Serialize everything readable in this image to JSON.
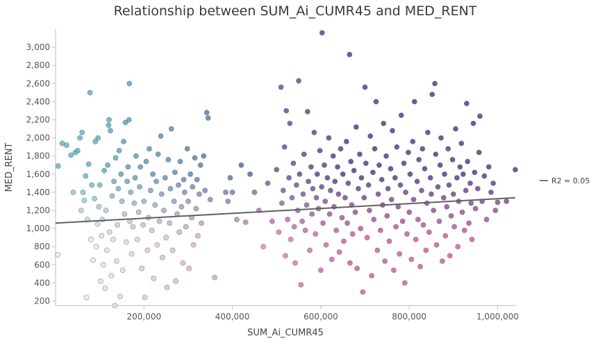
{
  "chart_data": {
    "type": "scatter",
    "title": "Relationship between SUM_Ai_CUMR45 and MED_RENT",
    "xlabel": "SUM_Ai_CUMR45",
    "ylabel": "MED_RENT",
    "xlim": [
      0,
      1040000
    ],
    "ylim": [
      150,
      3200
    ],
    "x_ticks": [
      200000,
      400000,
      600000,
      800000,
      1000000
    ],
    "x_tick_labels": [
      "200,000",
      "400,000",
      "600,000",
      "800,000",
      "1,000,000"
    ],
    "y_ticks": [
      200,
      400,
      600,
      800,
      1000,
      1200,
      1400,
      1600,
      1800,
      2000,
      2200,
      2400,
      2600,
      2800,
      3000
    ],
    "y_tick_labels": [
      "200",
      "400",
      "600",
      "800",
      "1,000",
      "1,200",
      "1,400",
      "1,600",
      "1,800",
      "2,000",
      "2,200",
      "2,400",
      "2,600",
      "2,800",
      "3,000"
    ],
    "grid": false,
    "legend_position": "right",
    "trendline": {
      "label": "R2 = 0.05",
      "x": [
        0,
        1040000
      ],
      "y": [
        1060,
        1340
      ],
      "color": "#606060"
    },
    "bivariate_colors": {
      "low_x_low_y": "#e8e8ee",
      "low_x_high_y": "#55b1c4",
      "high_x_low_y": "#cf4f99",
      "high_x_high_y": "#3c2f82"
    },
    "points": [
      [
        5000,
        710
      ],
      [
        6000,
        1690
      ],
      [
        15000,
        1940
      ],
      [
        25000,
        1920
      ],
      [
        35000,
        1810
      ],
      [
        40000,
        1400
      ],
      [
        45000,
        1840
      ],
      [
        50000,
        1860
      ],
      [
        55000,
        2000
      ],
      [
        58000,
        1200
      ],
      [
        60000,
        2060
      ],
      [
        62000,
        1400
      ],
      [
        65000,
        1310
      ],
      [
        68000,
        1580
      ],
      [
        70000,
        240
      ],
      [
        72000,
        1100
      ],
      [
        75000,
        1710
      ],
      [
        78000,
        2500
      ],
      [
        80000,
        880
      ],
      [
        82000,
        1480
      ],
      [
        85000,
        650
      ],
      [
        88000,
        1330
      ],
      [
        90000,
        1960
      ],
      [
        92000,
        800
      ],
      [
        95000,
        1050
      ],
      [
        96000,
        2000
      ],
      [
        98000,
        1240
      ],
      [
        100000,
        1480
      ],
      [
        102000,
        420
      ],
      [
        104000,
        920
      ],
      [
        106000,
        1100
      ],
      [
        108000,
        600
      ],
      [
        110000,
        1640
      ],
      [
        112000,
        340
      ],
      [
        114000,
        1200
      ],
      [
        116000,
        760
      ],
      [
        118000,
        1700
      ],
      [
        120000,
        2140
      ],
      [
        121000,
        2200
      ],
      [
        122000,
        960
      ],
      [
        124000,
        2080
      ],
      [
        126000,
        480
      ],
      [
        128000,
        1360
      ],
      [
        130000,
        880
      ],
      [
        132000,
        1520
      ],
      [
        134000,
        150
      ],
      [
        136000,
        1780
      ],
      [
        138000,
        640
      ],
      [
        140000,
        1040
      ],
      [
        142000,
        1440
      ],
      [
        144000,
        1860
      ],
      [
        146000,
        250
      ],
      [
        148000,
        1600
      ],
      [
        150000,
        1300
      ],
      [
        152000,
        540
      ],
      [
        154000,
        1960
      ],
      [
        156000,
        1160
      ],
      [
        158000,
        2170
      ],
      [
        160000,
        850
      ],
      [
        162000,
        1520
      ],
      [
        164000,
        1680
      ],
      [
        166000,
        2200
      ],
      [
        167000,
        2600
      ],
      [
        168000,
        1080
      ],
      [
        170000,
        1400
      ],
      [
        172000,
        720
      ],
      [
        175000,
        1020
      ],
      [
        178000,
        1280
      ],
      [
        180000,
        1560
      ],
      [
        182000,
        1800
      ],
      [
        185000,
        880
      ],
      [
        188000,
        1180
      ],
      [
        190000,
        1460
      ],
      [
        192000,
        1680
      ],
      [
        195000,
        560
      ],
      [
        198000,
        1040
      ],
      [
        200000,
        1300
      ],
      [
        202000,
        240
      ],
      [
        205000,
        1740
      ],
      [
        208000,
        760
      ],
      [
        210000,
        1120
      ],
      [
        212000,
        1880
      ],
      [
        215000,
        1420
      ],
      [
        218000,
        980
      ],
      [
        220000,
        1600
      ],
      [
        222000,
        450
      ],
      [
        225000,
        1260
      ],
      [
        228000,
        1520
      ],
      [
        230000,
        820
      ],
      [
        232000,
        1820
      ],
      [
        235000,
        1080
      ],
      [
        238000,
        2020
      ],
      [
        240000,
        1380
      ],
      [
        242000,
        680
      ],
      [
        245000,
        1200
      ],
      [
        248000,
        1560
      ],
      [
        250000,
        900
      ],
      [
        252000,
        350
      ],
      [
        255000,
        1760
      ],
      [
        258000,
        1060
      ],
      [
        260000,
        1440
      ],
      [
        262000,
        2100
      ],
      [
        265000,
        760
      ],
      [
        268000,
        1300
      ],
      [
        270000,
        1620
      ],
      [
        272000,
        420
      ],
      [
        275000,
        1160
      ],
      [
        278000,
        1480
      ],
      [
        280000,
        960
      ],
      [
        282000,
        1740
      ],
      [
        285000,
        1240
      ],
      [
        288000,
        620
      ],
      [
        290000,
        1540
      ],
      [
        292000,
        1400
      ],
      [
        295000,
        1020
      ],
      [
        298000,
        1880
      ],
      [
        300000,
        1300
      ],
      [
        302000,
        560
      ],
      [
        305000,
        1600
      ],
      [
        308000,
        1120
      ],
      [
        310000,
        1460
      ],
      [
        312000,
        820
      ],
      [
        315000,
        1780
      ],
      [
        318000,
        1220
      ],
      [
        320000,
        1540
      ],
      [
        322000,
        920
      ],
      [
        325000,
        1380
      ],
      [
        328000,
        1700
      ],
      [
        330000,
        1060
      ],
      [
        335000,
        1800
      ],
      [
        338000,
        1420
      ],
      [
        342000,
        2280
      ],
      [
        345000,
        2220
      ],
      [
        350000,
        1320
      ],
      [
        360000,
        460
      ],
      [
        385000,
        1400
      ],
      [
        390000,
        1300
      ],
      [
        395000,
        1560
      ],
      [
        400000,
        1400
      ],
      [
        410000,
        1100
      ],
      [
        420000,
        1700
      ],
      [
        430000,
        1070
      ],
      [
        440000,
        1600
      ],
      [
        450000,
        1400
      ],
      [
        460000,
        1200
      ],
      [
        470000,
        800
      ],
      [
        480000,
        1500
      ],
      [
        490000,
        1080
      ],
      [
        500000,
        1650
      ],
      [
        505000,
        960
      ],
      [
        510000,
        2560
      ],
      [
        512000,
        1280
      ],
      [
        515000,
        1420
      ],
      [
        518000,
        1900
      ],
      [
        520000,
        700
      ],
      [
        522000,
        2300
      ],
      [
        525000,
        1100
      ],
      [
        528000,
        1560
      ],
      [
        530000,
        2160
      ],
      [
        532000,
        880
      ],
      [
        535000,
        1340
      ],
      [
        538000,
        1720
      ],
      [
        540000,
        1020
      ],
      [
        542000,
        620
      ],
      [
        545000,
        1480
      ],
      [
        548000,
        1200
      ],
      [
        550000,
        2630
      ],
      [
        552000,
        1600
      ],
      [
        555000,
        380
      ],
      [
        558000,
        1080
      ],
      [
        560000,
        1380
      ],
      [
        562000,
        1820
      ],
      [
        565000,
        980
      ],
      [
        568000,
        1260
      ],
      [
        570000,
        2290
      ],
      [
        572000,
        1520
      ],
      [
        575000,
        760
      ],
      [
        578000,
        1680
      ],
      [
        580000,
        1160
      ],
      [
        582000,
        1440
      ],
      [
        585000,
        2060
      ],
      [
        588000,
        940
      ],
      [
        590000,
        1340
      ],
      [
        592000,
        1600
      ],
      [
        595000,
        1220
      ],
      [
        598000,
        1860
      ],
      [
        600000,
        540
      ],
      [
        602000,
        1460
      ],
      [
        603000,
        3160
      ],
      [
        605000,
        1060
      ],
      [
        608000,
        1700
      ],
      [
        610000,
        1300
      ],
      [
        612000,
        820
      ],
      [
        615000,
        1560
      ],
      [
        618000,
        2000
      ],
      [
        620000,
        1160
      ],
      [
        622000,
        1420
      ],
      [
        625000,
        660
      ],
      [
        628000,
        1800
      ],
      [
        630000,
        1240
      ],
      [
        632000,
        1520
      ],
      [
        635000,
        980
      ],
      [
        638000,
        1680
      ],
      [
        640000,
        1380
      ],
      [
        642000,
        740
      ],
      [
        645000,
        1880
      ],
      [
        648000,
        1120
      ],
      [
        650000,
        1600
      ],
      [
        652000,
        860
      ],
      [
        655000,
        1340
      ],
      [
        658000,
        1960
      ],
      [
        660000,
        1060
      ],
      [
        662000,
        1500
      ],
      [
        665000,
        2920
      ],
      [
        666000,
        620
      ],
      [
        668000,
        1740
      ],
      [
        670000,
        1260
      ],
      [
        672000,
        940
      ],
      [
        675000,
        1640
      ],
      [
        678000,
        1180
      ],
      [
        680000,
        2120
      ],
      [
        682000,
        560
      ],
      [
        685000,
        1440
      ],
      [
        688000,
        1820
      ],
      [
        690000,
        1000
      ],
      [
        692000,
        1560
      ],
      [
        695000,
        300
      ],
      [
        698000,
        1340
      ],
      [
        700000,
        2560
      ],
      [
        702000,
        1720
      ],
      [
        705000,
        900
      ],
      [
        708000,
        1480
      ],
      [
        710000,
        1200
      ],
      [
        712000,
        2020
      ],
      [
        715000,
        480
      ],
      [
        718000,
        1620
      ],
      [
        720000,
        1100
      ],
      [
        722000,
        1880
      ],
      [
        725000,
        2400
      ],
      [
        728000,
        760
      ],
      [
        730000,
        1380
      ],
      [
        732000,
        1700
      ],
      [
        735000,
        980
      ],
      [
        738000,
        1540
      ],
      [
        740000,
        1260
      ],
      [
        742000,
        2160
      ],
      [
        745000,
        640
      ],
      [
        748000,
        1800
      ],
      [
        750000,
        1140
      ],
      [
        752000,
        1440
      ],
      [
        755000,
        860
      ],
      [
        758000,
        1660
      ],
      [
        760000,
        1320
      ],
      [
        762000,
        2080
      ],
      [
        765000,
        540
      ],
      [
        768000,
        1560
      ],
      [
        770000,
        1020
      ],
      [
        772000,
        1900
      ],
      [
        775000,
        1240
      ],
      [
        778000,
        720
      ],
      [
        780000,
        1480
      ],
      [
        782000,
        2250
      ],
      [
        785000,
        1080
      ],
      [
        788000,
        1720
      ],
      [
        790000,
        400
      ],
      [
        792000,
        1400
      ],
      [
        795000,
        940
      ],
      [
        798000,
        1840
      ],
      [
        800000,
        1180
      ],
      [
        802000,
        1600
      ],
      [
        805000,
        660
      ],
      [
        808000,
        1960
      ],
      [
        810000,
        1320
      ],
      [
        812000,
        2400
      ],
      [
        815000,
        880
      ],
      [
        818000,
        1520
      ],
      [
        820000,
        1100
      ],
      [
        822000,
        1760
      ],
      [
        825000,
        580
      ],
      [
        828000,
        1420
      ],
      [
        830000,
        1880
      ],
      [
        832000,
        1040
      ],
      [
        835000,
        1660
      ],
      [
        838000,
        760
      ],
      [
        840000,
        1280
      ],
      [
        842000,
        2060
      ],
      [
        845000,
        960
      ],
      [
        848000,
        1560
      ],
      [
        850000,
        1380
      ],
      [
        852000,
        2480
      ],
      [
        855000,
        1200
      ],
      [
        858000,
        2600
      ],
      [
        860000,
        1820
      ],
      [
        862000,
        820
      ],
      [
        865000,
        1460
      ],
      [
        868000,
        1080
      ],
      [
        870000,
        1700
      ],
      [
        872000,
        2000
      ],
      [
        875000,
        640
      ],
      [
        878000,
        1340
      ],
      [
        880000,
        1600
      ],
      [
        882000,
        920
      ],
      [
        885000,
        1240
      ],
      [
        888000,
        1880
      ],
      [
        890000,
        1480
      ],
      [
        892000,
        700
      ],
      [
        895000,
        1140
      ],
      [
        898000,
        1760
      ],
      [
        900000,
        1380
      ],
      [
        902000,
        1020
      ],
      [
        905000,
        2100
      ],
      [
        908000,
        1560
      ],
      [
        910000,
        800
      ],
      [
        912000,
        1300
      ],
      [
        915000,
        1680
      ],
      [
        918000,
        1940
      ],
      [
        920000,
        1180
      ],
      [
        922000,
        1600
      ],
      [
        925000,
        980
      ],
      [
        928000,
        1420
      ],
      [
        930000,
        2380
      ],
      [
        932000,
        1740
      ],
      [
        935000,
        1060
      ],
      [
        938000,
        1500
      ],
      [
        940000,
        1280
      ],
      [
        942000,
        880
      ],
      [
        945000,
        2160
      ],
      [
        948000,
        1620
      ],
      [
        950000,
        1220
      ],
      [
        955000,
        1440
      ],
      [
        958000,
        1840
      ],
      [
        960000,
        2240
      ],
      [
        965000,
        1300
      ],
      [
        970000,
        1580
      ],
      [
        975000,
        1100
      ],
      [
        980000,
        1680
      ],
      [
        985000,
        1400
      ],
      [
        990000,
        1500
      ],
      [
        995000,
        1200
      ],
      [
        1000000,
        1290
      ],
      [
        1020000,
        1300
      ],
      [
        1040000,
        1650
      ]
    ]
  }
}
